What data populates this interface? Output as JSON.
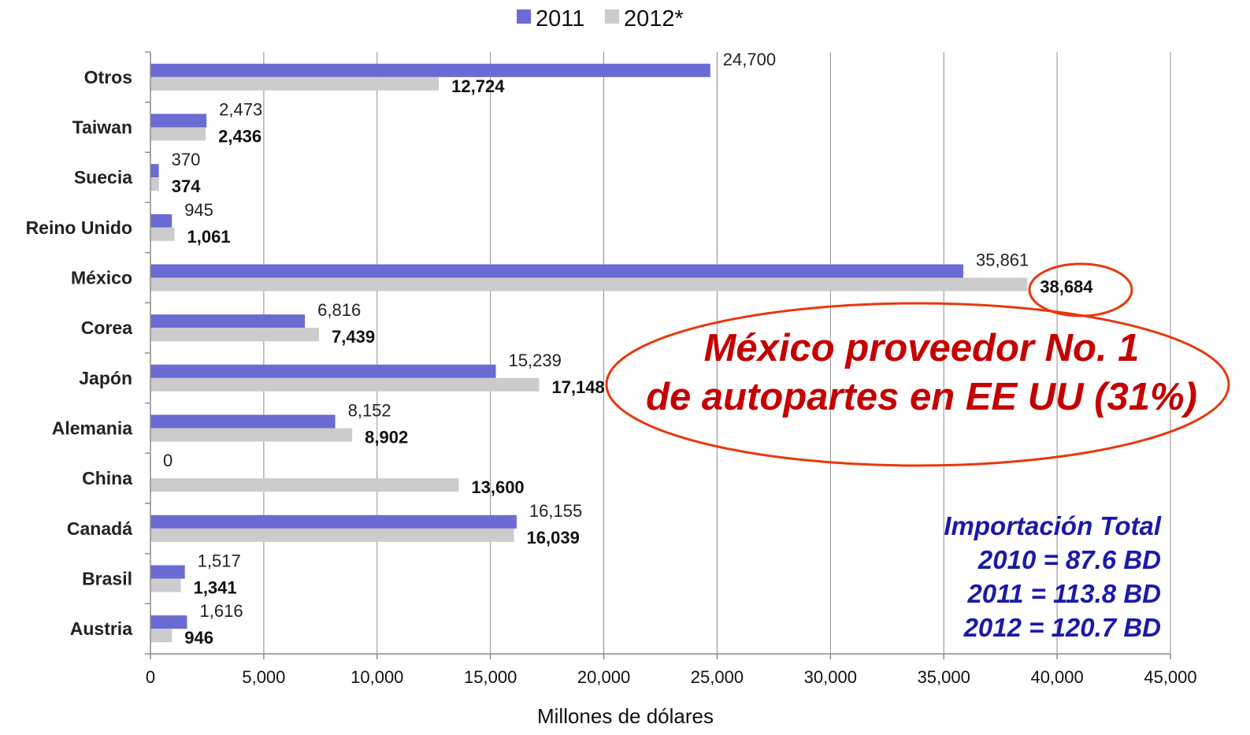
{
  "chart_data": {
    "type": "bar",
    "orientation": "horizontal",
    "categories": [
      "Otros",
      "Taiwan",
      "Suecia",
      "Reino Unido",
      "México",
      "Corea",
      "Japón",
      "Alemania",
      "China",
      "Canadá",
      "Brasil",
      "Austria"
    ],
    "series": [
      {
        "name": "2011",
        "color": "#6b6bd4",
        "values": [
          24700,
          2473,
          370,
          945,
          35861,
          6816,
          15239,
          8152,
          0,
          16155,
          1517,
          1616
        ],
        "labels": [
          "24,700",
          "2,473",
          "370",
          "945",
          "35,861",
          "6,816",
          "15,239",
          "8,152",
          "0",
          "16,155",
          "1,517",
          "1,616"
        ]
      },
      {
        "name": "2012*",
        "color": "#cccccc",
        "values": [
          12724,
          2436,
          374,
          1061,
          38684,
          7439,
          17148,
          8902,
          13600,
          16039,
          1341,
          946
        ],
        "labels": [
          "12,724",
          "2,436",
          "374",
          "1,061",
          "38,684",
          "7,439",
          "17,148",
          "8,902",
          "13,600",
          "16,039",
          "1,341",
          "946"
        ]
      }
    ],
    "xlabel": "Millones de dólares",
    "xlim": [
      0,
      45000
    ],
    "xticks": [
      0,
      5000,
      10000,
      15000,
      20000,
      25000,
      30000,
      35000,
      40000,
      45000
    ],
    "xtick_labels": [
      "0",
      "5,000",
      "10,000",
      "15,000",
      "20,000",
      "25,000",
      "30,000",
      "35,000",
      "40,000",
      "45,000"
    ],
    "grid": "vertical",
    "legend_position": "top-center"
  },
  "annotations": {
    "callout_line1": "México proveedor No. 1",
    "callout_line2": "de autopartes  en EE UU (31%)",
    "callout_color": "#c40000",
    "ellipse_color": "#e8380d",
    "summary_color": "#1a1aa8",
    "summary": [
      "Importación Total",
      "2010 = 87.6 BD",
      "2011 = 113.8 BD",
      "2012 = 120.7 BD"
    ]
  }
}
